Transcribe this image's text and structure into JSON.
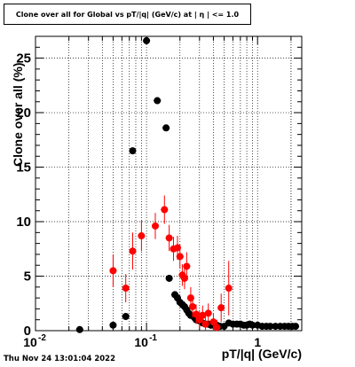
{
  "chart_data": {
    "type": "scatter",
    "title": "Clone  over all for Global vs pT/|q| (GeV/c) at |  η | <= 1.0",
    "xlabel": "pT/|q| (GeV/c)",
    "ylabel": "Clone  over all (%)",
    "xscale": "log",
    "xlim": [
      0.01,
      2.5
    ],
    "ylim": [
      0,
      27
    ],
    "xtick_labels": [
      "10",
      "10",
      "1"
    ],
    "xtick_exponents": [
      "-2",
      "-1",
      ""
    ],
    "ytick_labels": [
      "0",
      "5",
      "10",
      "15",
      "20",
      "25"
    ],
    "grid": true,
    "series": [
      {
        "color": "#000000",
        "points": [
          [
            0.025,
            0.1,
            0
          ],
          [
            0.05,
            0.5,
            0
          ],
          [
            0.065,
            1.3,
            0
          ],
          [
            0.075,
            16.5,
            0
          ],
          [
            0.1,
            26.6,
            0
          ],
          [
            0.125,
            21.1,
            0
          ],
          [
            0.15,
            18.6,
            0
          ],
          [
            0.16,
            4.8,
            0
          ],
          [
            0.18,
            3.3,
            0
          ],
          [
            0.19,
            3.0,
            0
          ],
          [
            0.2,
            2.6,
            0
          ],
          [
            0.21,
            2.4,
            0
          ],
          [
            0.22,
            2.2,
            0
          ],
          [
            0.23,
            1.9,
            0
          ],
          [
            0.24,
            1.6,
            0
          ],
          [
            0.25,
            1.4,
            0
          ],
          [
            0.27,
            1.2,
            0
          ],
          [
            0.28,
            1.0,
            0
          ],
          [
            0.3,
            0.9,
            0
          ],
          [
            0.32,
            0.7,
            0
          ],
          [
            0.34,
            0.6,
            0
          ],
          [
            0.36,
            0.6,
            0
          ],
          [
            0.38,
            0.5,
            0
          ],
          [
            0.4,
            0.5,
            0
          ],
          [
            0.43,
            0.5,
            0
          ],
          [
            0.46,
            0.4,
            0
          ],
          [
            0.5,
            0.4,
            0
          ],
          [
            0.55,
            0.7,
            0
          ],
          [
            0.6,
            0.6,
            0
          ],
          [
            0.65,
            0.6,
            0
          ],
          [
            0.7,
            0.6,
            0
          ],
          [
            0.75,
            0.5,
            0
          ],
          [
            0.8,
            0.5,
            0
          ],
          [
            0.85,
            0.6,
            0
          ],
          [
            0.9,
            0.5,
            0
          ],
          [
            1.0,
            0.5,
            0
          ],
          [
            1.1,
            0.4,
            0
          ],
          [
            1.2,
            0.4,
            0
          ],
          [
            1.3,
            0.4,
            0
          ],
          [
            1.45,
            0.4,
            0
          ],
          [
            1.6,
            0.4,
            0
          ],
          [
            1.75,
            0.4,
            0
          ],
          [
            1.9,
            0.4,
            0
          ],
          [
            2.05,
            0.4,
            0
          ],
          [
            2.2,
            0.4,
            0
          ]
        ]
      },
      {
        "color": "#ff0000",
        "points": [
          [
            0.05,
            5.5,
            1.5
          ],
          [
            0.065,
            3.9,
            1.3
          ],
          [
            0.075,
            7.3,
            1.7
          ],
          [
            0.09,
            8.7,
            1.4
          ],
          [
            0.12,
            9.6,
            1.2
          ],
          [
            0.145,
            11.1,
            1.3
          ],
          [
            0.16,
            8.5,
            1.2
          ],
          [
            0.175,
            7.5,
            1.1
          ],
          [
            0.19,
            7.6,
            1.1
          ],
          [
            0.2,
            6.8,
            1.1
          ],
          [
            0.21,
            5.1,
            1.0
          ],
          [
            0.22,
            4.8,
            1.0
          ],
          [
            0.23,
            5.9,
            1.3
          ],
          [
            0.25,
            3.0,
            1.0
          ],
          [
            0.26,
            2.2,
            1.0
          ],
          [
            0.28,
            1.5,
            0.9
          ],
          [
            0.3,
            1.0,
            0.8
          ],
          [
            0.32,
            1.4,
            0.9
          ],
          [
            0.34,
            0.6,
            0.7
          ],
          [
            0.36,
            1.6,
            0.9
          ],
          [
            0.4,
            0.8,
            0.8
          ],
          [
            0.43,
            0.3,
            0.7
          ],
          [
            0.47,
            2.1,
            1.3
          ],
          [
            0.55,
            3.9,
            2.5
          ]
        ]
      }
    ]
  },
  "timestamp": "Thu Nov 24 13:01:04 2022"
}
